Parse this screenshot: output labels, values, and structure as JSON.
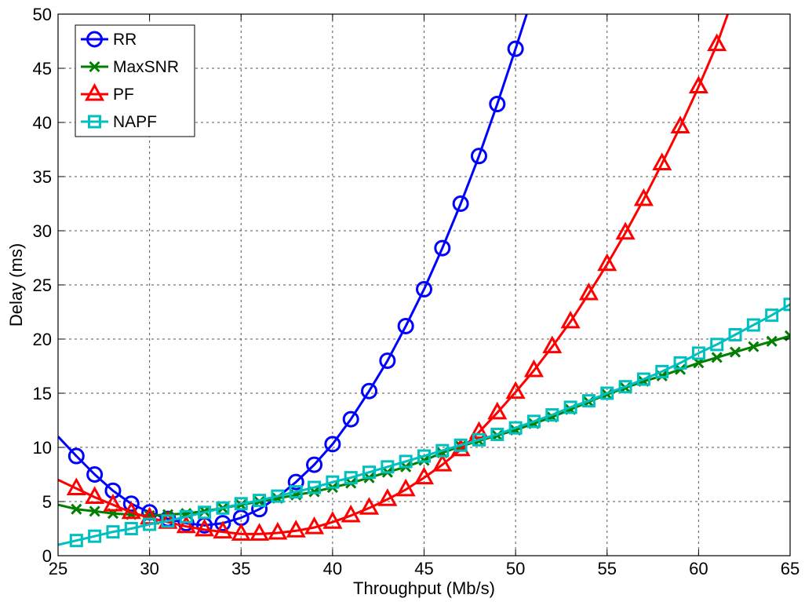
{
  "chart_data": {
    "type": "line",
    "xlabel": "Throughput (Mb/s)",
    "ylabel": "Delay (ms)",
    "xlim": [
      25,
      65
    ],
    "ylim": [
      0,
      50
    ],
    "xticks": [
      25,
      30,
      35,
      40,
      45,
      50,
      55,
      60,
      65
    ],
    "yticks": [
      0,
      5,
      10,
      15,
      20,
      25,
      30,
      35,
      40,
      45,
      50
    ],
    "grid": true,
    "legend_position": "top-left",
    "series": [
      {
        "name": "RR",
        "color": "#0000ff",
        "marker": "circle",
        "line": [
          [
            25,
            11.0
          ],
          [
            26,
            9.2
          ],
          [
            27,
            7.5
          ],
          [
            28,
            6.0
          ],
          [
            29,
            4.8
          ],
          [
            30,
            4.0
          ],
          [
            31,
            3.4
          ],
          [
            32,
            3.0
          ],
          [
            33,
            2.8
          ],
          [
            34,
            3.0
          ],
          [
            35,
            3.5
          ],
          [
            36,
            4.3
          ],
          [
            37,
            5.4
          ],
          [
            38,
            6.8
          ],
          [
            39,
            8.4
          ],
          [
            40,
            10.3
          ],
          [
            41,
            12.6
          ],
          [
            42,
            15.2
          ],
          [
            43,
            18.0
          ],
          [
            44,
            21.2
          ],
          [
            45,
            24.6
          ],
          [
            46,
            28.4
          ],
          [
            47,
            32.5
          ],
          [
            48,
            36.9
          ],
          [
            49,
            41.7
          ],
          [
            50,
            46.8
          ],
          [
            50.7,
            50.5
          ]
        ],
        "markers": [
          [
            26,
            9.2
          ],
          [
            27,
            7.5
          ],
          [
            28,
            6.0
          ],
          [
            29,
            4.8
          ],
          [
            30,
            4.0
          ],
          [
            31,
            3.4
          ],
          [
            32,
            3.0
          ],
          [
            33,
            2.8
          ],
          [
            34,
            3.0
          ],
          [
            35,
            3.5
          ],
          [
            36,
            4.3
          ],
          [
            38,
            6.8
          ],
          [
            39,
            8.4
          ],
          [
            40,
            10.3
          ],
          [
            41,
            12.6
          ],
          [
            42,
            15.2
          ],
          [
            43,
            18.0
          ],
          [
            44,
            21.2
          ],
          [
            45,
            24.6
          ],
          [
            46,
            28.4
          ],
          [
            47,
            32.5
          ],
          [
            48,
            36.9
          ],
          [
            49,
            41.7
          ],
          [
            50,
            46.8
          ]
        ]
      },
      {
        "name": "MaxSNR",
        "color": "#007f00",
        "marker": "x",
        "line": [
          [
            25,
            4.7
          ],
          [
            26,
            4.3
          ],
          [
            27,
            4.1
          ],
          [
            28,
            3.9
          ],
          [
            29,
            3.8
          ],
          [
            30,
            3.7
          ],
          [
            31,
            3.8
          ],
          [
            32,
            3.9
          ],
          [
            33,
            4.1
          ],
          [
            34,
            4.4
          ],
          [
            35,
            4.7
          ],
          [
            36,
            5.0
          ],
          [
            37,
            5.3
          ],
          [
            38,
            5.6
          ],
          [
            39,
            5.9
          ],
          [
            40,
            6.3
          ],
          [
            41,
            6.7
          ],
          [
            42,
            7.2
          ],
          [
            43,
            7.7
          ],
          [
            44,
            8.2
          ],
          [
            45,
            8.8
          ],
          [
            46,
            9.5
          ],
          [
            47,
            10.1
          ],
          [
            48,
            10.6
          ],
          [
            49,
            11.1
          ],
          [
            50,
            11.6
          ],
          [
            51,
            12.2
          ],
          [
            52,
            12.8
          ],
          [
            53,
            13.5
          ],
          [
            54,
            14.2
          ],
          [
            55,
            14.9
          ],
          [
            56,
            15.5
          ],
          [
            57,
            16.1
          ],
          [
            58,
            16.6
          ],
          [
            59,
            17.2
          ],
          [
            60,
            17.8
          ],
          [
            61,
            18.3
          ],
          [
            62,
            18.8
          ],
          [
            63,
            19.3
          ],
          [
            64,
            19.8
          ],
          [
            65,
            20.3
          ]
        ],
        "markers": [
          [
            26,
            4.3
          ],
          [
            27,
            4.1
          ],
          [
            28,
            3.9
          ],
          [
            29,
            3.8
          ],
          [
            30,
            3.7
          ],
          [
            31,
            3.8
          ],
          [
            32,
            3.9
          ],
          [
            33,
            4.1
          ],
          [
            34,
            4.4
          ],
          [
            35,
            4.7
          ],
          [
            36,
            5.0
          ],
          [
            37,
            5.3
          ],
          [
            38,
            5.6
          ],
          [
            39,
            5.9
          ],
          [
            40,
            6.3
          ],
          [
            41,
            6.7
          ],
          [
            42,
            7.2
          ],
          [
            43,
            7.7
          ],
          [
            44,
            8.2
          ],
          [
            45,
            8.8
          ],
          [
            46,
            9.5
          ],
          [
            47,
            10.1
          ],
          [
            48,
            10.6
          ],
          [
            49,
            11.1
          ],
          [
            50,
            11.6
          ],
          [
            51,
            12.2
          ],
          [
            52,
            12.8
          ],
          [
            53,
            13.5
          ],
          [
            54,
            14.2
          ],
          [
            55,
            14.9
          ],
          [
            56,
            15.5
          ],
          [
            57,
            16.1
          ],
          [
            58,
            16.6
          ],
          [
            59,
            17.2
          ],
          [
            60,
            17.8
          ],
          [
            61,
            18.3
          ],
          [
            62,
            18.8
          ],
          [
            63,
            19.3
          ],
          [
            64,
            19.8
          ],
          [
            65,
            20.3
          ]
        ]
      },
      {
        "name": "PF",
        "color": "#ff0000",
        "marker": "triangle",
        "line": [
          [
            25,
            7.0
          ],
          [
            26,
            6.2
          ],
          [
            27,
            5.4
          ],
          [
            28,
            4.7
          ],
          [
            29,
            4.0
          ],
          [
            30,
            3.5
          ],
          [
            31,
            3.1
          ],
          [
            32,
            2.7
          ],
          [
            33,
            2.4
          ],
          [
            34,
            2.2
          ],
          [
            35,
            2.0
          ],
          [
            36,
            2.0
          ],
          [
            37,
            2.1
          ],
          [
            38,
            2.3
          ],
          [
            39,
            2.6
          ],
          [
            40,
            3.1
          ],
          [
            41,
            3.7
          ],
          [
            42,
            4.4
          ],
          [
            43,
            5.2
          ],
          [
            44,
            6.1
          ],
          [
            45,
            7.2
          ],
          [
            46,
            8.4
          ],
          [
            47,
            9.8
          ],
          [
            48,
            11.4
          ],
          [
            49,
            13.2
          ],
          [
            50,
            15.1
          ],
          [
            51,
            17.1
          ],
          [
            52,
            19.3
          ],
          [
            53,
            21.6
          ],
          [
            54,
            24.2
          ],
          [
            55,
            26.9
          ],
          [
            56,
            29.8
          ],
          [
            57,
            32.9
          ],
          [
            58,
            36.2
          ],
          [
            59,
            39.6
          ],
          [
            60,
            43.3
          ],
          [
            61,
            47.2
          ],
          [
            61.7,
            50.5
          ]
        ],
        "markers": [
          [
            26,
            6.2
          ],
          [
            27,
            5.4
          ],
          [
            28,
            4.7
          ],
          [
            29,
            4.0
          ],
          [
            30,
            3.5
          ],
          [
            31,
            3.1
          ],
          [
            32,
            2.7
          ],
          [
            33,
            2.4
          ],
          [
            34,
            2.2
          ],
          [
            35,
            2.0
          ],
          [
            36,
            2.0
          ],
          [
            37,
            2.1
          ],
          [
            38,
            2.3
          ],
          [
            39,
            2.6
          ],
          [
            40,
            3.1
          ],
          [
            41,
            3.7
          ],
          [
            42,
            4.4
          ],
          [
            43,
            5.2
          ],
          [
            44,
            6.1
          ],
          [
            45,
            7.2
          ],
          [
            46,
            8.4
          ],
          [
            47,
            9.8
          ],
          [
            48,
            11.4
          ],
          [
            49,
            13.2
          ],
          [
            50,
            15.1
          ],
          [
            51,
            17.1
          ],
          [
            52,
            19.3
          ],
          [
            53,
            21.6
          ],
          [
            54,
            24.2
          ],
          [
            55,
            26.9
          ],
          [
            56,
            29.8
          ],
          [
            57,
            32.9
          ],
          [
            58,
            36.2
          ],
          [
            59,
            39.6
          ],
          [
            60,
            43.3
          ],
          [
            61,
            47.2
          ]
        ]
      },
      {
        "name": "NAPF",
        "color": "#00bfbf",
        "marker": "square",
        "line": [
          [
            25,
            1.0
          ],
          [
            26,
            1.4
          ],
          [
            27,
            1.8
          ],
          [
            28,
            2.2
          ],
          [
            29,
            2.5
          ],
          [
            30,
            2.9
          ],
          [
            31,
            3.2
          ],
          [
            32,
            3.6
          ],
          [
            33,
            4.0
          ],
          [
            34,
            4.4
          ],
          [
            35,
            4.8
          ],
          [
            36,
            5.1
          ],
          [
            37,
            5.5
          ],
          [
            38,
            5.9
          ],
          [
            39,
            6.3
          ],
          [
            40,
            6.8
          ],
          [
            41,
            7.2
          ],
          [
            42,
            7.7
          ],
          [
            43,
            8.2
          ],
          [
            44,
            8.7
          ],
          [
            45,
            9.2
          ],
          [
            46,
            9.7
          ],
          [
            47,
            10.2
          ],
          [
            48,
            10.7
          ],
          [
            49,
            11.2
          ],
          [
            50,
            11.8
          ],
          [
            51,
            12.4
          ],
          [
            52,
            13.0
          ],
          [
            53,
            13.7
          ],
          [
            54,
            14.3
          ],
          [
            55,
            15.0
          ],
          [
            56,
            15.6
          ],
          [
            57,
            16.3
          ],
          [
            58,
            17.0
          ],
          [
            59,
            17.8
          ],
          [
            60,
            18.7
          ],
          [
            61,
            19.5
          ],
          [
            62,
            20.4
          ],
          [
            63,
            21.3
          ],
          [
            64,
            22.2
          ],
          [
            65,
            23.2
          ]
        ],
        "markers": [
          [
            26,
            1.4
          ],
          [
            27,
            1.8
          ],
          [
            28,
            2.2
          ],
          [
            29,
            2.5
          ],
          [
            30,
            2.9
          ],
          [
            31,
            3.2
          ],
          [
            32,
            3.6
          ],
          [
            33,
            4.0
          ],
          [
            34,
            4.4
          ],
          [
            35,
            4.8
          ],
          [
            36,
            5.1
          ],
          [
            37,
            5.5
          ],
          [
            38,
            5.9
          ],
          [
            39,
            6.3
          ],
          [
            40,
            6.8
          ],
          [
            41,
            7.2
          ],
          [
            42,
            7.7
          ],
          [
            43,
            8.2
          ],
          [
            44,
            8.7
          ],
          [
            45,
            9.2
          ],
          [
            46,
            9.7
          ],
          [
            47,
            10.2
          ],
          [
            48,
            10.7
          ],
          [
            49,
            11.2
          ],
          [
            50,
            11.8
          ],
          [
            51,
            12.4
          ],
          [
            52,
            13.0
          ],
          [
            53,
            13.7
          ],
          [
            54,
            14.3
          ],
          [
            55,
            15.0
          ],
          [
            56,
            15.6
          ],
          [
            57,
            16.3
          ],
          [
            58,
            17.0
          ],
          [
            59,
            17.8
          ],
          [
            60,
            18.7
          ],
          [
            61,
            19.5
          ],
          [
            62,
            20.4
          ],
          [
            63,
            21.3
          ],
          [
            64,
            22.2
          ],
          [
            65,
            23.2
          ]
        ]
      }
    ]
  }
}
